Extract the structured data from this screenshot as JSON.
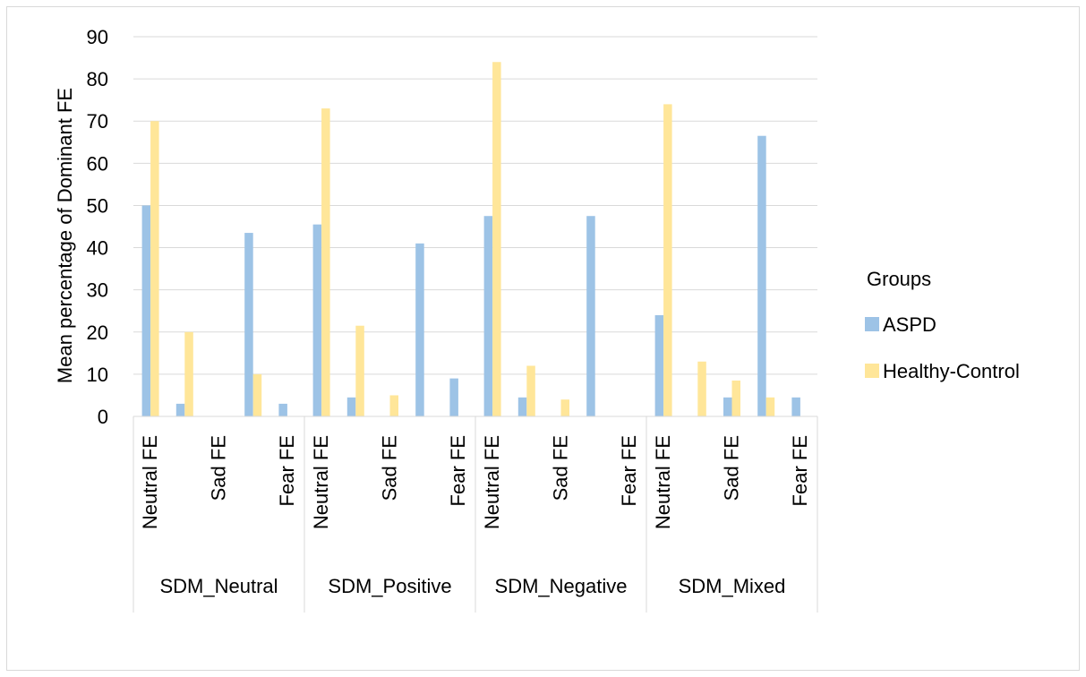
{
  "chart_data": {
    "type": "bar",
    "title": "",
    "ylabel": "Mean percentage of Dominant FE",
    "xlabel": "",
    "ylim": [
      0,
      90
    ],
    "yticks": [
      0,
      10,
      20,
      30,
      40,
      50,
      60,
      70,
      80,
      90
    ],
    "grid": true,
    "legend_title": "Groups",
    "legend_position": "right",
    "groups": [
      "SDM_Neutral",
      "SDM_Positive",
      "SDM_Negative",
      "SDM_Mixed"
    ],
    "sub_categories": [
      "Neutral FE",
      "",
      "Sad FE",
      "",
      "Fear FE"
    ],
    "series": [
      {
        "name": "ASPD",
        "color": "#9dc3e6",
        "values": [
          [
            50,
            3,
            0,
            43.5,
            3
          ],
          [
            45.5,
            4.5,
            0,
            41,
            9
          ],
          [
            47.5,
            4.5,
            0,
            47.5,
            0
          ],
          [
            24,
            0,
            4.5,
            66.5,
            4.5
          ]
        ]
      },
      {
        "name": "Healthy-Control",
        "color": "#ffe699",
        "values": [
          [
            70,
            20,
            0,
            10,
            0
          ],
          [
            73,
            21.5,
            5,
            0,
            0
          ],
          [
            84,
            12,
            4,
            0,
            0
          ],
          [
            74,
            13,
            8.5,
            4.5,
            0
          ]
        ]
      }
    ]
  }
}
